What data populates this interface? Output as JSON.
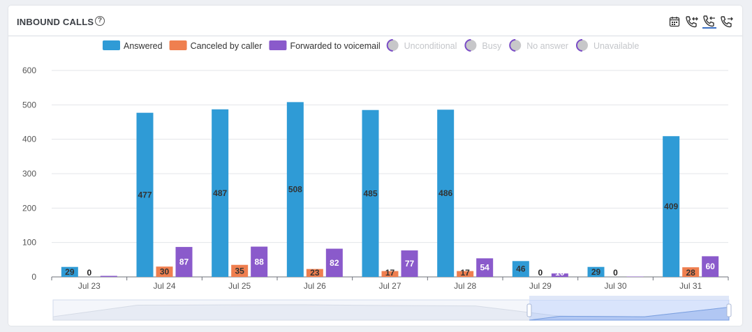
{
  "header": {
    "title": "INBOUND CALLS",
    "help_glyph": "?"
  },
  "toolbar": [
    {
      "icon": "calendar-icon",
      "active": false
    },
    {
      "icon": "phone-inbound-icon",
      "active": false
    },
    {
      "icon": "phone-incoming-icon",
      "active": true
    },
    {
      "icon": "phone-outbound-icon",
      "active": false
    }
  ],
  "chart_data": {
    "type": "bar",
    "categories": [
      "Jul 23",
      "Jul 24",
      "Jul 25",
      "Jul 26",
      "Jul 27",
      "Jul 28",
      "Jul 29",
      "Jul 30",
      "Jul 31"
    ],
    "ylim": [
      0,
      600
    ],
    "yticks": [
      0,
      100,
      200,
      300,
      400,
      500,
      600
    ],
    "grid": true,
    "legend_position": "top-center",
    "series": [
      {
        "name": "Answered",
        "color": "#2f9bd6",
        "label_color": "#333333",
        "values": [
          29,
          477,
          487,
          508,
          485,
          486,
          46,
          29,
          409
        ]
      },
      {
        "name": "Canceled by caller",
        "color": "#ef7f4f",
        "label_color": "#333333",
        "values": [
          0,
          30,
          35,
          23,
          17,
          17,
          0,
          0,
          28
        ]
      },
      {
        "name": "Forwarded to voicemail",
        "color": "#8a5acb",
        "label_color": "#ffffff",
        "values": [
          3,
          87,
          88,
          82,
          77,
          54,
          10,
          1,
          60
        ]
      }
    ],
    "hidden_series": [
      "Unconditional",
      "Busy",
      "No answer",
      "Unavailable"
    ]
  }
}
